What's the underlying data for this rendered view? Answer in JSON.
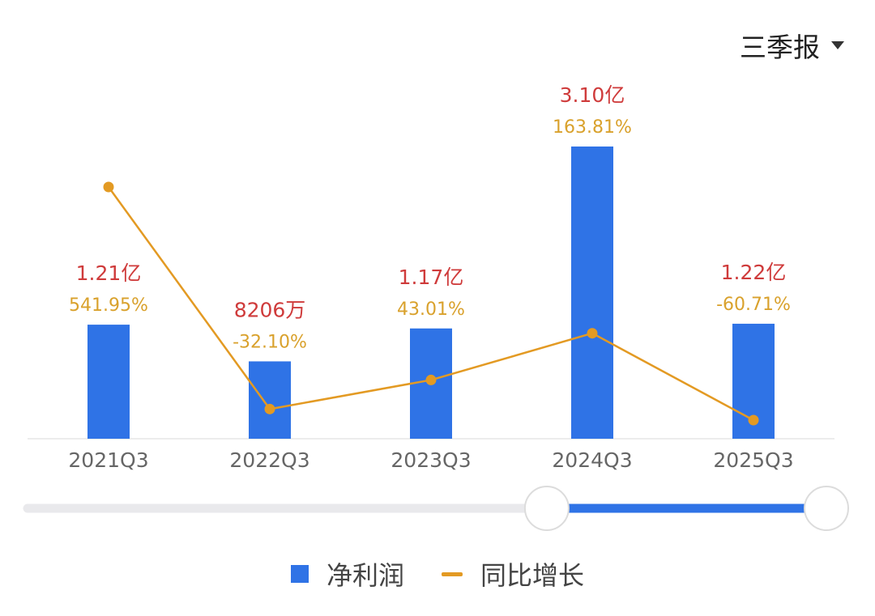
{
  "period_selector": {
    "label": "三季报"
  },
  "colors": {
    "bar": "#2f73e6",
    "line": "#e39a23",
    "value_label": "#cf3b3b",
    "growth_label": "#d9a12c",
    "axis_text": "#666666",
    "slider_track": "#e9e9ec",
    "slider_fill": "#2f73e6"
  },
  "chart_data": {
    "type": "bar",
    "categories": [
      "2021Q3",
      "2022Q3",
      "2023Q3",
      "2024Q3",
      "2025Q3"
    ],
    "series": [
      {
        "name": "净利润",
        "type": "bar",
        "values": [
          121000000,
          82060000,
          117000000,
          310000000,
          122000000
        ],
        "labels": [
          "1.21亿",
          "8206万",
          "1.17亿",
          "3.10亿",
          "1.22亿"
        ]
      },
      {
        "name": "同比增长",
        "type": "line",
        "values": [
          541.95,
          -32.1,
          43.01,
          163.81,
          -60.71
        ],
        "labels": [
          "541.95%",
          "-32.10%",
          "43.01%",
          "163.81%",
          "-60.71%"
        ]
      }
    ],
    "slider": {
      "start": 0.65,
      "end": 1.0
    }
  },
  "legend": [
    {
      "label": "净利润",
      "kind": "bar"
    },
    {
      "label": "同比增长",
      "kind": "line"
    }
  ]
}
